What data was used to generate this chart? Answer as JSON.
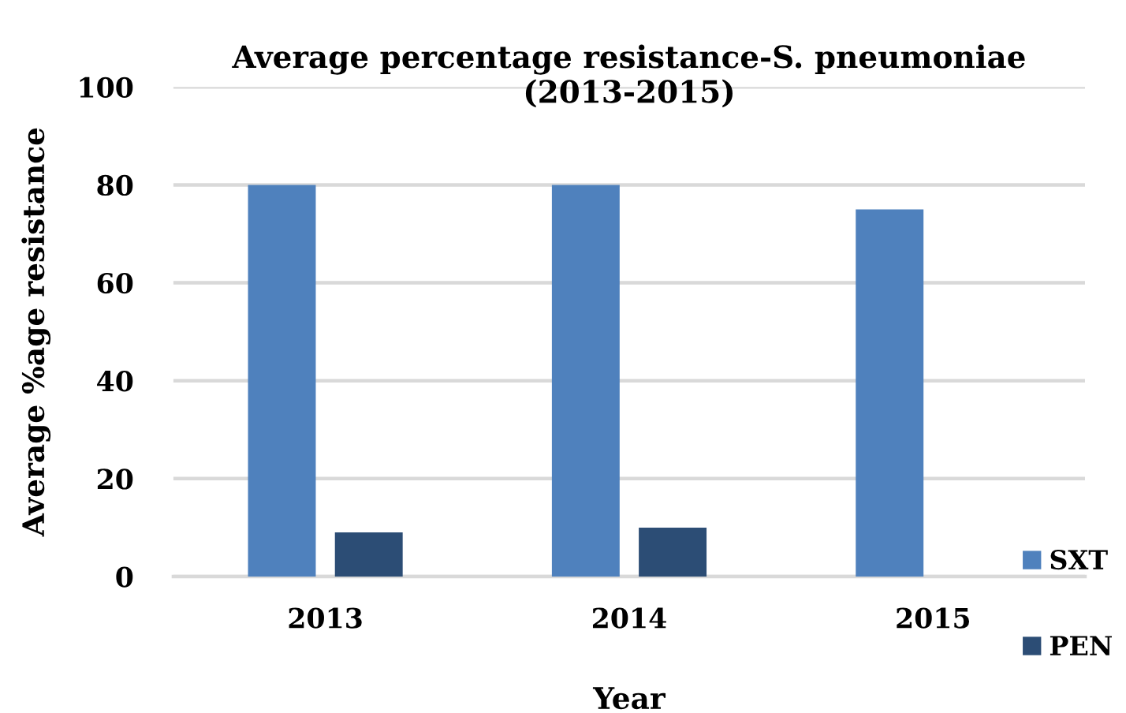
{
  "chart_data": {
    "type": "bar",
    "title": "Average percentage resistance-S. pneumoniae\n(2013-2015)",
    "xlabel": "Year",
    "ylabel": "Average %age resistance",
    "categories": [
      "2013",
      "2014",
      "2015"
    ],
    "series": [
      {
        "name": "SXT",
        "color": "#4f81bd",
        "values": [
          80,
          80,
          75
        ]
      },
      {
        "name": "PEN",
        "color": "#2c4d75",
        "values": [
          9,
          10,
          null
        ]
      }
    ],
    "ylim": [
      0,
      100
    ],
    "yticks": [
      0,
      20,
      40,
      60,
      80,
      100
    ],
    "grid": "y",
    "legend": "right"
  }
}
